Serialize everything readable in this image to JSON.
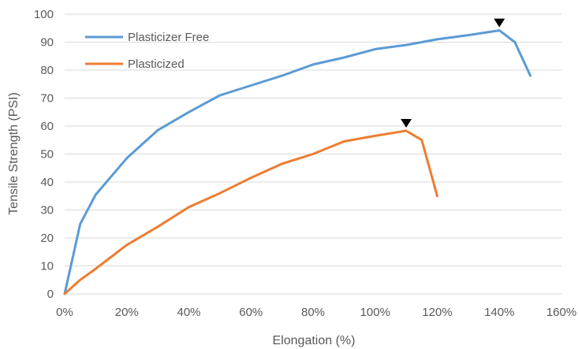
{
  "chart_data": {
    "type": "line",
    "title": "",
    "xlabel": "Elongation (%)",
    "ylabel": "Tensile Strength (PSI)",
    "xlim": [
      0,
      160
    ],
    "ylim": [
      0,
      100
    ],
    "x_ticks": [
      0,
      20,
      40,
      60,
      80,
      100,
      120,
      140,
      160
    ],
    "x_tick_labels": [
      "0%",
      "20%",
      "40%",
      "60%",
      "80%",
      "100%",
      "120%",
      "140%",
      "160%"
    ],
    "y_ticks": [
      0,
      10,
      20,
      30,
      40,
      50,
      60,
      70,
      80,
      90,
      100
    ],
    "y_tick_labels": [
      "0",
      "10",
      "20",
      "30",
      "40",
      "50",
      "60",
      "70",
      "80",
      "90",
      "100"
    ],
    "grid": true,
    "legend_position": "top-left",
    "series": [
      {
        "name": "Plasticizer Free",
        "color": "#5b9bd5",
        "x": [
          0,
          5,
          10,
          20,
          30,
          40,
          50,
          60,
          70,
          80,
          90,
          100,
          110,
          120,
          130,
          140,
          145,
          150
        ],
        "y": [
          0,
          25,
          35.5,
          48.5,
          58.5,
          65,
          71,
          74.5,
          78,
          82,
          84.5,
          87.5,
          89,
          91,
          92.5,
          94.2,
          90,
          78
        ],
        "peak_marker": {
          "x": 140,
          "y": 94.2
        }
      },
      {
        "name": "Plasticized",
        "color": "#ed7d31",
        "x": [
          0,
          5,
          10,
          20,
          30,
          40,
          50,
          60,
          70,
          80,
          90,
          100,
          110,
          115,
          120
        ],
        "y": [
          0,
          5,
          9,
          17.5,
          24,
          31,
          36,
          41.5,
          46.5,
          50,
          54.5,
          56.5,
          58.3,
          55,
          35
        ],
        "peak_marker": {
          "x": 110,
          "y": 58.3
        }
      }
    ]
  }
}
